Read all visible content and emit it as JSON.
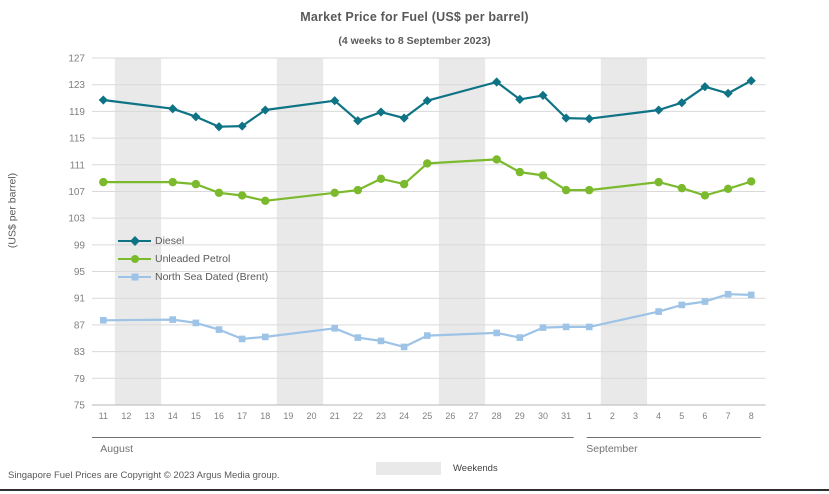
{
  "title": "Market Price for Fuel (US$ per barrel)",
  "subtitle": "(4 weeks to 8 September 2023)",
  "y_axis_title": "(US$ per barrel)",
  "footer": "Singapore Fuel Prices are Copyright © 2023 Argus Media group.",
  "weekends_label": "Weekends",
  "colors": {
    "title_text": "#595959",
    "tick_text": "#808080",
    "month_text": "#737373",
    "gridline": "#D9D9D9",
    "axis_line": "#B7B7B7",
    "weekend_band": "#E9E9E9"
  },
  "chart_data": {
    "type": "line",
    "title": "Market Price for Fuel (US$ per barrel)",
    "subtitle": "(4 weeks to 8 September 2023)",
    "ylabel": "(US$ per barrel)",
    "ylim": [
      75,
      127
    ],
    "yticks": [
      75,
      79,
      83,
      87,
      91,
      95,
      99,
      103,
      107,
      111,
      115,
      119,
      123,
      127
    ],
    "grid": true,
    "legend_position": "inside-left",
    "x_labels": [
      "11",
      "12",
      "13",
      "14",
      "15",
      "16",
      "17",
      "18",
      "19",
      "20",
      "21",
      "22",
      "23",
      "24",
      "25",
      "26",
      "27",
      "28",
      "29",
      "30",
      "31",
      "1",
      "2",
      "3",
      "4",
      "5",
      "6",
      "7",
      "8"
    ],
    "month_groups": [
      {
        "label": "August",
        "start": 0,
        "end": 20
      },
      {
        "label": "September",
        "start": 21,
        "end": 28
      }
    ],
    "weekend_bands": [
      [
        1,
        2
      ],
      [
        8,
        9
      ],
      [
        15,
        16
      ],
      [
        22,
        23
      ]
    ],
    "series": [
      {
        "name": "Diesel",
        "id": "diesel",
        "color": "#0E7384",
        "marker": "diamond",
        "points": [
          [
            0,
            120.7
          ],
          [
            3,
            119.4
          ],
          [
            4,
            118.2
          ],
          [
            5,
            116.7
          ],
          [
            6,
            116.8
          ],
          [
            7,
            119.2
          ],
          [
            10,
            120.6
          ],
          [
            11,
            117.6
          ],
          [
            12,
            118.9
          ],
          [
            13,
            118.0
          ],
          [
            14,
            120.6
          ],
          [
            17,
            123.4
          ],
          [
            18,
            120.8
          ],
          [
            19,
            121.4
          ],
          [
            20,
            118.0
          ],
          [
            21,
            117.9
          ],
          [
            24,
            119.2
          ],
          [
            25,
            120.3
          ],
          [
            26,
            122.7
          ],
          [
            27,
            121.7
          ],
          [
            28,
            123.6
          ]
        ]
      },
      {
        "name": "Unleaded Petrol",
        "id": "unleaded-petrol",
        "color": "#7CBA2D",
        "marker": "circle",
        "points": [
          [
            0,
            108.4
          ],
          [
            3,
            108.4
          ],
          [
            4,
            108.1
          ],
          [
            5,
            106.8
          ],
          [
            6,
            106.4
          ],
          [
            7,
            105.6
          ],
          [
            10,
            106.8
          ],
          [
            11,
            107.2
          ],
          [
            12,
            108.9
          ],
          [
            13,
            108.1
          ],
          [
            14,
            111.2
          ],
          [
            17,
            111.8
          ],
          [
            18,
            109.9
          ],
          [
            19,
            109.4
          ],
          [
            20,
            107.2
          ],
          [
            21,
            107.2
          ],
          [
            24,
            108.4
          ],
          [
            25,
            107.5
          ],
          [
            26,
            106.4
          ],
          [
            27,
            107.4
          ],
          [
            28,
            108.5
          ]
        ]
      },
      {
        "name": "North Sea Dated (Brent)",
        "id": "brent",
        "color": "#9DC3E6",
        "marker": "square",
        "points": [
          [
            0,
            87.7
          ],
          [
            3,
            87.8
          ],
          [
            4,
            87.3
          ],
          [
            5,
            86.3
          ],
          [
            6,
            84.9
          ],
          [
            7,
            85.2
          ],
          [
            10,
            86.5
          ],
          [
            11,
            85.1
          ],
          [
            12,
            84.6
          ],
          [
            13,
            83.7
          ],
          [
            14,
            85.4
          ],
          [
            17,
            85.8
          ],
          [
            18,
            85.1
          ],
          [
            19,
            86.6
          ],
          [
            20,
            86.7
          ],
          [
            21,
            86.7
          ],
          [
            24,
            89.0
          ],
          [
            25,
            90.0
          ],
          [
            26,
            90.5
          ],
          [
            27,
            91.6
          ],
          [
            28,
            91.5
          ]
        ]
      }
    ]
  }
}
